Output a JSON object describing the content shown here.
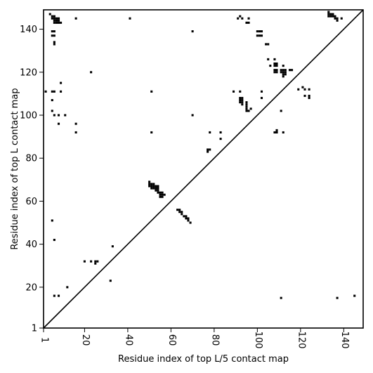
{
  "chart_data": {
    "type": "scatter",
    "xlabel": "Residue index of top L/5 contact map",
    "ylabel": "Residue index of top L contact map",
    "xlim": [
      1,
      149
    ],
    "ylim": [
      1,
      149
    ],
    "x_ticks": [
      1,
      20,
      40,
      60,
      80,
      100,
      120,
      140
    ],
    "y_ticks": [
      1,
      20,
      40,
      60,
      80,
      100,
      120,
      140
    ],
    "diagonal": true,
    "color": "#000000",
    "upper_points": [
      [
        4,
        147
      ],
      [
        5,
        146
      ],
      [
        5,
        145
      ],
      [
        6,
        146
      ],
      [
        6,
        145
      ],
      [
        6,
        144
      ],
      [
        6,
        143
      ],
      [
        7,
        145
      ],
      [
        7,
        144
      ],
      [
        7,
        143
      ],
      [
        8,
        145
      ],
      [
        8,
        144
      ],
      [
        8,
        143
      ],
      [
        9,
        143
      ],
      [
        5,
        139
      ],
      [
        6,
        139
      ],
      [
        5,
        137
      ],
      [
        6,
        137
      ],
      [
        6,
        134
      ],
      [
        6,
        133
      ],
      [
        16,
        145
      ],
      [
        41,
        145
      ],
      [
        70,
        139
      ],
      [
        91,
        145
      ],
      [
        92,
        146
      ],
      [
        93,
        145
      ],
      [
        96,
        145
      ],
      [
        95,
        143
      ],
      [
        96,
        143
      ],
      [
        100,
        139
      ],
      [
        101,
        139
      ],
      [
        102,
        139
      ],
      [
        100,
        137
      ],
      [
        101,
        137
      ],
      [
        102,
        137
      ],
      [
        104,
        133
      ],
      [
        105,
        133
      ],
      [
        105,
        126
      ],
      [
        108,
        126
      ],
      [
        106,
        123
      ],
      [
        108,
        124
      ],
      [
        109,
        124
      ],
      [
        108,
        123
      ],
      [
        109,
        123
      ],
      [
        112,
        123
      ],
      [
        108,
        121
      ],
      [
        109,
        121
      ],
      [
        108,
        120
      ],
      [
        109,
        120
      ],
      [
        111,
        121
      ],
      [
        112,
        121
      ],
      [
        113,
        121
      ],
      [
        111,
        120
      ],
      [
        112,
        120
      ],
      [
        113,
        120
      ],
      [
        112,
        119
      ],
      [
        113,
        119
      ],
      [
        112,
        118
      ],
      [
        115,
        121
      ],
      [
        116,
        121
      ],
      [
        133,
        148
      ],
      [
        133,
        147
      ],
      [
        134,
        147
      ],
      [
        135,
        147
      ],
      [
        133,
        146
      ],
      [
        134,
        146
      ],
      [
        135,
        146
      ],
      [
        136,
        146
      ],
      [
        136,
        145
      ],
      [
        137,
        145
      ],
      [
        137,
        144
      ],
      [
        139,
        145
      ],
      [
        23,
        120
      ],
      [
        9,
        115
      ],
      [
        2,
        111
      ],
      [
        5,
        111
      ],
      [
        6,
        111
      ],
      [
        9,
        111
      ],
      [
        51,
        111
      ],
      [
        89,
        111
      ],
      [
        92,
        111
      ],
      [
        92,
        108
      ],
      [
        93,
        108
      ],
      [
        92,
        107
      ],
      [
        93,
        107
      ],
      [
        92,
        106
      ],
      [
        93,
        106
      ],
      [
        93,
        105
      ],
      [
        95,
        106
      ],
      [
        95,
        105
      ],
      [
        95,
        104
      ],
      [
        95,
        103
      ],
      [
        95,
        102
      ],
      [
        96,
        102
      ],
      [
        97,
        103
      ],
      [
        102,
        111
      ],
      [
        102,
        108
      ],
      [
        111,
        102
      ],
      [
        119,
        112
      ],
      [
        121,
        113
      ],
      [
        122,
        112
      ],
      [
        124,
        112
      ],
      [
        122,
        109
      ],
      [
        124,
        109
      ],
      [
        124,
        108
      ],
      [
        5,
        107
      ],
      [
        5,
        102
      ],
      [
        6,
        100
      ],
      [
        8,
        100
      ],
      [
        11,
        100
      ],
      [
        70,
        100
      ],
      [
        8,
        96
      ],
      [
        16,
        96
      ],
      [
        16,
        92
      ],
      [
        51,
        92
      ],
      [
        78,
        92
      ],
      [
        83,
        92
      ],
      [
        83,
        89
      ],
      [
        77,
        84
      ],
      [
        78,
        84
      ],
      [
        77,
        83
      ],
      [
        108,
        92
      ],
      [
        109,
        93
      ],
      [
        109,
        92
      ],
      [
        112,
        92
      ]
    ],
    "lower_points": [
      [
        50,
        69
      ],
      [
        50,
        68
      ],
      [
        51,
        68
      ],
      [
        52,
        68
      ],
      [
        50,
        67
      ],
      [
        51,
        67
      ],
      [
        52,
        67
      ],
      [
        53,
        67
      ],
      [
        54,
        67
      ],
      [
        51,
        66
      ],
      [
        52,
        66
      ],
      [
        53,
        66
      ],
      [
        54,
        66
      ],
      [
        53,
        65
      ],
      [
        54,
        65
      ],
      [
        54,
        64
      ],
      [
        55,
        64
      ],
      [
        56,
        64
      ],
      [
        55,
        63
      ],
      [
        56,
        63
      ],
      [
        57,
        63
      ],
      [
        55,
        62
      ],
      [
        56,
        62
      ],
      [
        63,
        56
      ],
      [
        64,
        56
      ],
      [
        64,
        55
      ],
      [
        65,
        55
      ],
      [
        65,
        54
      ],
      [
        66,
        53
      ],
      [
        67,
        53
      ],
      [
        67,
        52
      ],
      [
        68,
        52
      ],
      [
        68,
        51
      ],
      [
        69,
        50
      ],
      [
        5,
        51
      ],
      [
        6,
        42
      ],
      [
        33,
        39
      ],
      [
        20,
        32
      ],
      [
        23,
        32
      ],
      [
        25,
        32
      ],
      [
        26,
        32
      ],
      [
        25,
        31
      ],
      [
        32,
        23
      ],
      [
        12,
        20
      ],
      [
        6,
        16
      ],
      [
        8,
        16
      ],
      [
        111,
        15
      ],
      [
        137,
        15
      ],
      [
        145,
        16
      ]
    ]
  }
}
